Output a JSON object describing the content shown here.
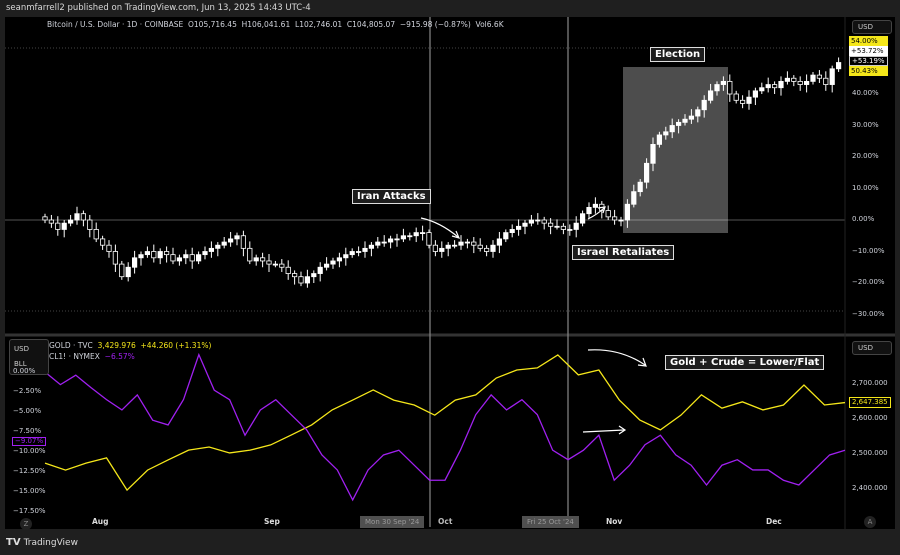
{
  "publisher_line": "seanmfarrell2 published on TradingView.com, Jun 13, 2025 14:43 UTC-4",
  "main_legend": {
    "symbol": "Bitcoin / U.S. Dollar · 1D · COINBASE",
    "open": "O105,716.45",
    "high": "H106,041.61",
    "low": "L102,746.01",
    "close": "C104,805.07",
    "change": "−915.98 (−0.87%)",
    "volume": "Vol6.6K"
  },
  "price_axis": {
    "currency": "USD",
    "ticks": [
      "40.00%",
      "30.00%",
      "20.00%",
      "10.00%",
      "0.00%",
      "−10.00%",
      "−20.00%",
      "−30.00%"
    ],
    "tags": [
      {
        "text": "54.00%",
        "bg": "#f5e71a",
        "fg": "#000"
      },
      {
        "text": "+53.72%",
        "bg": "#ffffff",
        "fg": "#000"
      },
      {
        "text": "+53.19%",
        "bg": "#000000",
        "fg": "#fff"
      },
      {
        "text": "50.43%",
        "bg": "#f5e71a",
        "fg": "#000"
      }
    ]
  },
  "annotations": {
    "election": "Election",
    "iran": "Iran Attacks",
    "israel": "Israel Retaliates",
    "gold_crude": "Gold + Crude = Lower/Flat"
  },
  "lower_pane": {
    "left_units": [
      "USD",
      "BLL"
    ],
    "gold_legend": {
      "symbol": "GOLD · TVC",
      "value": "3,429.976",
      "change": "+44.260 (+1.31%)"
    },
    "crude_legend": {
      "symbol": "CL1! · NYMEX",
      "change": "−6.57%"
    },
    "left_ticks": [
      "0.00%",
      "−2.50%",
      "−5.00%",
      "−7.50%",
      "−10.00%",
      "−12.50%",
      "−15.00%",
      "−17.50%"
    ],
    "crude_tag": "−9.07%",
    "right_currency": "USD",
    "right_ticks": [
      "2,700.000",
      "2,600.000",
      "2,500.000",
      "2,400.000"
    ],
    "gold_tag": "2,647.385"
  },
  "time_axis": {
    "labels": [
      "Aug",
      "Sep",
      "Oct",
      "Nov",
      "Dec"
    ],
    "crosshair_tags": [
      "Mon 30 Sep '24",
      "Fri 25 Oct '24"
    ],
    "auto_button": "A",
    "zoom_button": "Z"
  },
  "footer": {
    "brand": "TradingView"
  },
  "colors": {
    "gold": "#f5e71a",
    "crude": "#a020f0",
    "candle_up": "#ffffff",
    "candle_down": "#000000",
    "background": "#000000"
  },
  "chart_data": [
    {
      "type": "candlestick",
      "title": "Bitcoin / U.S. Dollar · 1D · COINBASE",
      "ylabel": "% change",
      "ylim": [
        -30,
        54
      ],
      "closes_pct": [
        0,
        -1,
        -3,
        -1,
        0,
        2,
        0,
        -3,
        -6,
        -8,
        -10,
        -14,
        -18,
        -15,
        -12,
        -11,
        -10,
        -12,
        -10,
        -11,
        -13,
        -12,
        -11,
        -13,
        -11,
        -10,
        -9,
        -8,
        -7,
        -6,
        -5,
        -9,
        -13,
        -12,
        -13,
        -14,
        -14,
        -15,
        -17,
        -18,
        -20,
        -18,
        -17,
        -15,
        -14,
        -13,
        -12,
        -11,
        -10,
        -10,
        -9,
        -8,
        -7,
        -7,
        -6,
        -6,
        -5,
        -5,
        -4,
        -4,
        -8,
        -10,
        -9,
        -8,
        -8,
        -7,
        -7,
        -8,
        -9,
        -10,
        -8,
        -6,
        -4,
        -3,
        -2,
        -1,
        0,
        0,
        -1,
        -2,
        -2,
        -3,
        -3,
        -1,
        2,
        4,
        5,
        3,
        1,
        0,
        0,
        5,
        9,
        12,
        18,
        24,
        27,
        28,
        30,
        31,
        32,
        33,
        35,
        38,
        41,
        43,
        44,
        40,
        38,
        37,
        39,
        41,
        42,
        43,
        42,
        44,
        45,
        44,
        43,
        44,
        46,
        45,
        43,
        48,
        50
      ]
    },
    {
      "type": "line",
      "series": [
        {
          "name": "GOLD · TVC",
          "axis": "right",
          "values": [
            2474,
            2454,
            2474,
            2489,
            2397,
            2454,
            2483,
            2511,
            2520,
            2503,
            2511,
            2526,
            2554,
            2583,
            2626,
            2654,
            2683,
            2654,
            2640,
            2611,
            2654,
            2669,
            2717,
            2740,
            2746,
            2783,
            2726,
            2740,
            2654,
            2597,
            2569,
            2611,
            2669,
            2631,
            2649,
            2626,
            2640,
            2697,
            2640,
            2647
          ]
        },
        {
          "name": "CL1! · NYMEX",
          "axis": "left",
          "values": [
            0,
            -1.6,
            -0.4,
            -2.0,
            -3.5,
            -4.8,
            -2.9,
            -6.1,
            -6.7,
            -3.5,
            2.2,
            -2.3,
            -3.5,
            -8.0,
            -4.8,
            -3.5,
            -5.4,
            -7.3,
            -10.5,
            -12.4,
            -16.2,
            -12.4,
            -10.5,
            -9.9,
            -11.8,
            -13.7,
            -13.7,
            -9.9,
            -5.4,
            -2.9,
            -4.8,
            -3.5,
            -5.4,
            -9.9,
            -11.1,
            -9.9,
            -8.0,
            -13.7,
            -11.8,
            -9.2,
            -8.0,
            -10.5,
            -11.8,
            -14.3,
            -11.8,
            -11.1,
            -12.4,
            -12.4,
            -13.7,
            -14.3,
            -12.4,
            -10.5,
            -9.9
          ]
        }
      ],
      "ylim_right": [
        2350,
        2800
      ],
      "ylim_left": [
        -18.5,
        1
      ]
    }
  ]
}
